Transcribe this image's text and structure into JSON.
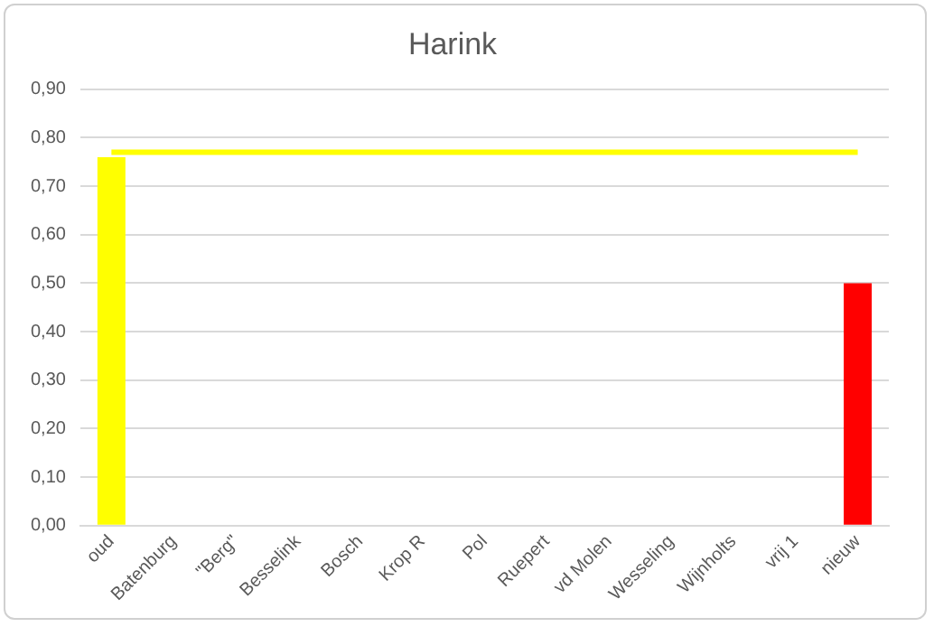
{
  "chart_data": {
    "type": "bar",
    "title": "Harink",
    "categories": [
      "oud",
      "Batenburg",
      "\"Berg\"",
      "Besselink",
      "Bosch",
      "Krop R",
      "Pol",
      "Ruepert",
      "vd Molen",
      "Wesseling",
      "Wijnholts",
      "vrij 1",
      "nieuw"
    ],
    "series": [
      {
        "colors": [
          "#ffff00",
          null,
          null,
          null,
          null,
          null,
          null,
          null,
          null,
          null,
          null,
          null,
          "#ff0000"
        ],
        "values": [
          0.76,
          null,
          null,
          null,
          null,
          null,
          null,
          null,
          null,
          null,
          null,
          null,
          0.5
        ]
      },
      {
        "type": "line",
        "color": "#ffff00",
        "values": [
          0.77,
          0.77,
          0.77,
          0.77,
          0.77,
          0.77,
          0.77,
          0.77,
          0.77,
          0.77,
          0.77,
          0.77,
          0.77
        ]
      }
    ],
    "ylim": [
      0,
      0.9
    ],
    "yticks": [
      {
        "value": 0,
        "label": "0,00"
      },
      {
        "value": 0.1,
        "label": "0,10"
      },
      {
        "value": 0.2,
        "label": "0,20"
      },
      {
        "value": 0.3,
        "label": "0,30"
      },
      {
        "value": 0.4,
        "label": "0,40"
      },
      {
        "value": 0.5,
        "label": "0,50"
      },
      {
        "value": 0.6,
        "label": "0,60"
      },
      {
        "value": 0.7,
        "label": "0,70"
      },
      {
        "value": 0.8,
        "label": "0,80"
      },
      {
        "value": 0.9,
        "label": "0,90"
      }
    ],
    "grid": "y",
    "legend": false,
    "marker": "none"
  }
}
